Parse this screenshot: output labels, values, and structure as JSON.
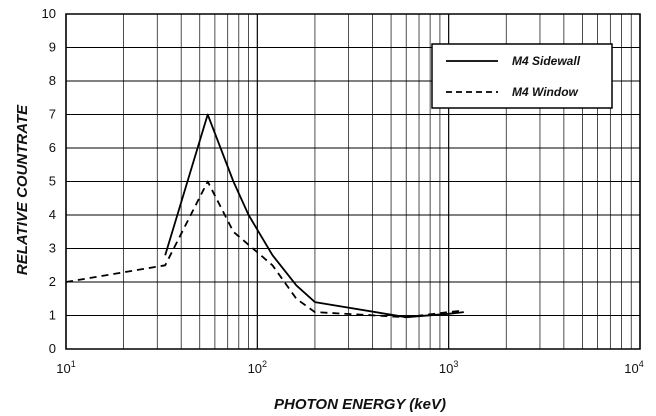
{
  "chart_data": {
    "type": "line",
    "x_scale": "log",
    "y_scale": "linear",
    "xlabel": "PHOTON ENERGY (keV)",
    "ylabel": "RELATIVE COUNTRATE",
    "xlim": [
      10,
      10000
    ],
    "ylim": [
      0,
      10
    ],
    "grid": true,
    "legend_position": "top-right",
    "x_ticks": [
      {
        "value": 10,
        "base": "10",
        "exp": "1"
      },
      {
        "value": 100,
        "base": "10",
        "exp": "2"
      },
      {
        "value": 1000,
        "base": "10",
        "exp": "3"
      },
      {
        "value": 10000,
        "base": "10",
        "exp": "4"
      }
    ],
    "y_ticks": [
      "0",
      "1",
      "2",
      "3",
      "4",
      "5",
      "6",
      "7",
      "8",
      "9",
      "10"
    ],
    "series": [
      {
        "name": "M4 Sidewall",
        "style": "solid",
        "points": [
          [
            33,
            2.8
          ],
          [
            55,
            7.0
          ],
          [
            75,
            5.0
          ],
          [
            90,
            4.0
          ],
          [
            120,
            2.8
          ],
          [
            160,
            1.9
          ],
          [
            200,
            1.4
          ],
          [
            600,
            0.95
          ],
          [
            1000,
            1.05
          ],
          [
            1200,
            1.1
          ]
        ]
      },
      {
        "name": "M4 Window",
        "style": "dashed",
        "points": [
          [
            10,
            2.0
          ],
          [
            33,
            2.5
          ],
          [
            55,
            5.0
          ],
          [
            75,
            3.5
          ],
          [
            120,
            2.5
          ],
          [
            160,
            1.5
          ],
          [
            200,
            1.1
          ],
          [
            600,
            0.95
          ],
          [
            1000,
            1.1
          ],
          [
            1200,
            1.15
          ]
        ]
      }
    ]
  }
}
